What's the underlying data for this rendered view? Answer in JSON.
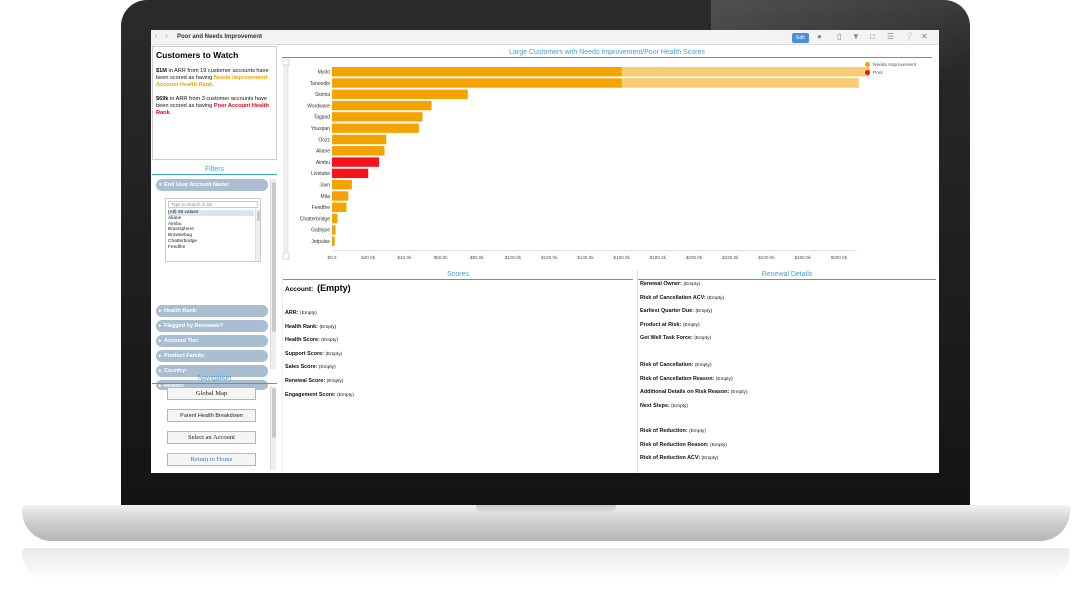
{
  "topbar": {
    "nav_arrows": "‹ ›",
    "dashboard_title": "Poor and Needs Improvement",
    "edit_label": "Edit"
  },
  "customers_to_watch": {
    "heading": "Customers to Watch",
    "p1_amount": "$1M",
    "p1_text": " in ARR from 19 customer accounts have been scored as having ",
    "p1_highlight": "Needs Improvement Account Health Rank",
    "p2_amount": "$69k",
    "p2_text": " in ARR from 3 customer accounts have been scored as having ",
    "p2_highlight": "Poor Account Health Rank",
    "period": "."
  },
  "filters": {
    "title": "Filters",
    "end_user_header": "End User Account Name:",
    "search_placeholder": "Type to search in list",
    "list_items": [
      "(All) 48 values",
      "Aliane",
      "Aimbu",
      "Brainsphere",
      "Browsebug",
      "Chatterbridge",
      "Feedfire"
    ],
    "collapsed_headers": [
      "Health Rank:",
      "Flagged by Renewals?",
      "Account Tier:",
      "Product Family:",
      "Country:",
      "Region:"
    ]
  },
  "navigation": {
    "title": "Navigation",
    "buttons": [
      "Global Map",
      "Parent Health Breakdown",
      "Select an Account",
      "Return to Home"
    ]
  },
  "chart_data": {
    "type": "bar",
    "orientation": "horizontal",
    "title": "Large Customers with Needs Improvement/Poor Health Scores",
    "categories": [
      "Mydo",
      "Tanoodle",
      "Skimia",
      "Wordware",
      "Tagpad",
      "Youspan",
      "Oozz",
      "Aliane",
      "Aimbu",
      "Livetube",
      "Jaxn",
      "Mita",
      "Feedfire",
      "Chatterbridge",
      "Gabtype",
      "Jetpulse"
    ],
    "values": [
      297,
      291,
      75,
      55,
      50,
      48,
      30,
      29,
      26,
      20,
      11,
      9,
      8,
      3,
      2,
      1.5
    ],
    "health_rank": [
      "Needs Improvement",
      "Needs Improvement",
      "Needs Improvement",
      "Needs Improvement",
      "Needs Improvement",
      "Needs Improvement",
      "Needs Improvement",
      "Needs Improvement",
      "Poor",
      "Poor",
      "Needs Improvement",
      "Needs Improvement",
      "Needs Improvement",
      "Needs Improvement",
      "Needs Improvement",
      "Needs Improvement"
    ],
    "x_ticks": [
      "$0.0",
      "$20.0k",
      "$40.0k",
      "$60.0k",
      "$80.0k",
      "$100.0k",
      "$120.0k",
      "$140.0k",
      "$160.0k",
      "$180.0k",
      "$200.0k",
      "$220.0k",
      "$240.0k",
      "$260.0k",
      "$280.0k"
    ],
    "x_unit": "k USD",
    "xlim": [
      0,
      290
    ],
    "legend": [
      {
        "name": "Needs Improvement",
        "color": "#f5a300"
      },
      {
        "name": "Poor",
        "color": "#f5141e"
      }
    ],
    "legend_position": "top-right",
    "grid": false
  },
  "scores": {
    "title": "Scores",
    "account_label": "Account:",
    "account_value": "(Empty)",
    "fields": [
      {
        "label": "ARR:",
        "value": "(Empty)"
      },
      {
        "label": "Health Rank:",
        "value": "(Empty)"
      },
      {
        "label": "Health Score:",
        "value": "(Empty)"
      },
      {
        "label": "Support Score:",
        "value": "(Empty)"
      },
      {
        "label": "Sales Score:",
        "value": "(Empty)"
      },
      {
        "label": "Renewal Score:",
        "value": "(Empty)"
      },
      {
        "label": "Engagement Score:",
        "value": "(Empty)"
      }
    ]
  },
  "renewal": {
    "title": "Renewal Details",
    "group1": [
      {
        "label": "Renewal Owner:",
        "value": "(Empty)"
      },
      {
        "label": "Risk of Cancellation ACV:",
        "value": "(Empty)"
      },
      {
        "label": "Earliest Quarter Due:",
        "value": "(Empty)"
      },
      {
        "label": "Product at Risk:",
        "value": "(Empty)"
      },
      {
        "label": "Get Well Task Force:",
        "value": "(Empty)"
      }
    ],
    "group2": [
      {
        "label": "Risk of Cancellation:",
        "value": "(Empty)"
      },
      {
        "label": "Risk of Cancellation Reason:",
        "value": "(Empty)"
      },
      {
        "label": "Additional Details on Risk Reason:",
        "value": "(Empty)"
      },
      {
        "label": "Next Steps:",
        "value": "(Empty)"
      }
    ],
    "group3": [
      {
        "label": "Risk of Reduction:",
        "value": "(Empty)"
      },
      {
        "label": "Risk of Reduction Reason:",
        "value": "(Empty)"
      },
      {
        "label": "Risk of Reduction ACV:",
        "value": "(Empty)"
      }
    ]
  },
  "colors": {
    "accent_blue": "#3da0d8",
    "needs_improvement": "#f5a300",
    "poor": "#f5141e",
    "filter_header": "#a9bfd1"
  },
  "icons": [
    "comment-icon",
    "bookmark-icon",
    "filter-icon",
    "expand-icon",
    "menu-icon",
    "help-icon",
    "close-icon"
  ]
}
